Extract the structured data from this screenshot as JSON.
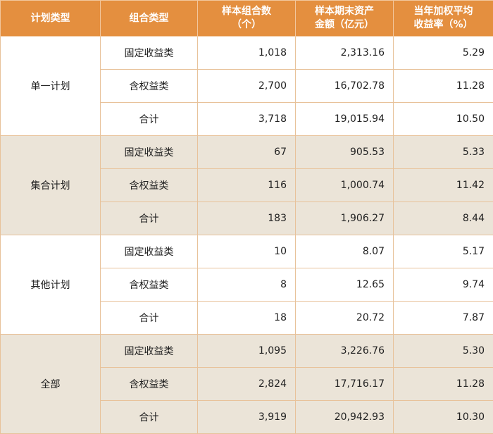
{
  "headers": {
    "col1": "计划类型",
    "col2": "组合类型",
    "col3_line1": "样本组合数",
    "col3_line2": "（个）",
    "col4_line1": "样本期末资产",
    "col4_line2": "金额（亿元）",
    "col5_line1": "当年加权平均",
    "col5_line2": "收益率（%）"
  },
  "groups": [
    {
      "plan": "单一计划",
      "rows": [
        {
          "type": "固定收益类",
          "count": "1,018",
          "assets": "2,313.16",
          "yield": "5.29"
        },
        {
          "type": "含权益类",
          "count": "2,700",
          "assets": "16,702.78",
          "yield": "11.28"
        },
        {
          "type": "合计",
          "count": "3,718",
          "assets": "19,015.94",
          "yield": "10.50"
        }
      ]
    },
    {
      "plan": "集合计划",
      "rows": [
        {
          "type": "固定收益类",
          "count": "67",
          "assets": "905.53",
          "yield": "5.33"
        },
        {
          "type": "含权益类",
          "count": "116",
          "assets": "1,000.74",
          "yield": "11.42"
        },
        {
          "type": "合计",
          "count": "183",
          "assets": "1,906.27",
          "yield": "8.44"
        }
      ]
    },
    {
      "plan": "其他计划",
      "rows": [
        {
          "type": "固定收益类",
          "count": "10",
          "assets": "8.07",
          "yield": "5.17"
        },
        {
          "type": "含权益类",
          "count": "8",
          "assets": "12.65",
          "yield": "9.74"
        },
        {
          "type": "合计",
          "count": "18",
          "assets": "20.72",
          "yield": "7.87"
        }
      ]
    },
    {
      "plan": "全部",
      "rows": [
        {
          "type": "固定收益类",
          "count": "1,095",
          "assets": "3,226.76",
          "yield": "5.30"
        },
        {
          "type": "含权益类",
          "count": "2,824",
          "assets": "17,716.17",
          "yield": "11.28"
        },
        {
          "type": "合计",
          "count": "3,919",
          "assets": "20,942.93",
          "yield": "10.30"
        }
      ]
    }
  ]
}
